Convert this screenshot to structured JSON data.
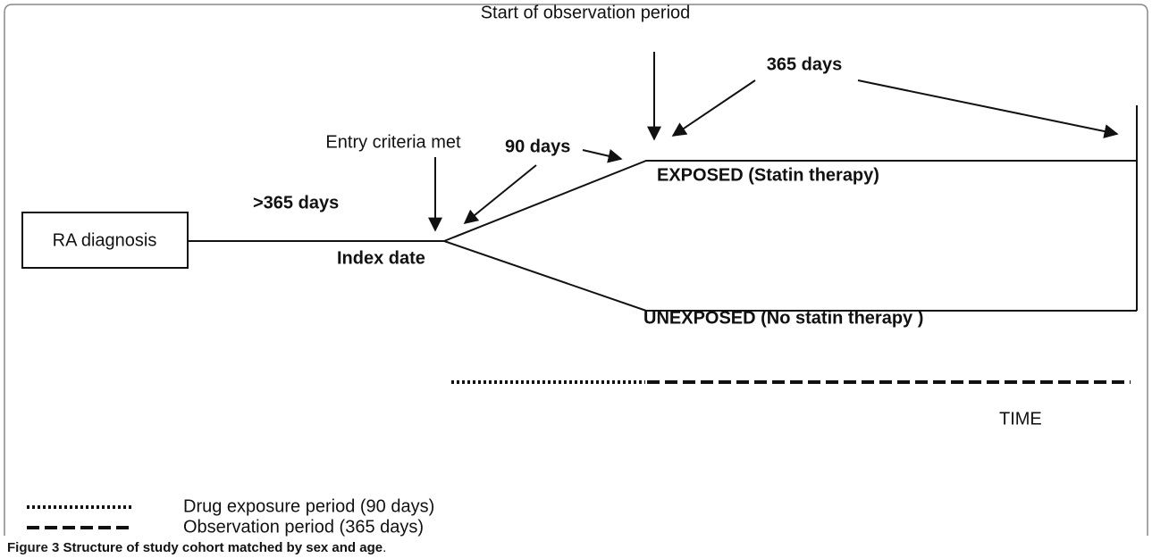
{
  "diagram": {
    "box": "RA diagnosis",
    "pre_index": ">365 days",
    "index_date": "Index date",
    "entry": "Entry criteria met",
    "exposure_days": "90 days",
    "start_observation": "Start of observation period",
    "observation_days": "365 days",
    "exposed": "EXPOSED (Statin therapy)",
    "unexposed": "UNEXPOSED (No statin therapy )",
    "time": "TIME"
  },
  "legend": [
    {
      "label": "Drug exposure period (90 days)"
    },
    {
      "label": "Observation period (365 days)"
    }
  ],
  "caption": {
    "label": "Figure 3",
    "text": "Structure of study cohort matched by sex and age",
    "end": "."
  }
}
